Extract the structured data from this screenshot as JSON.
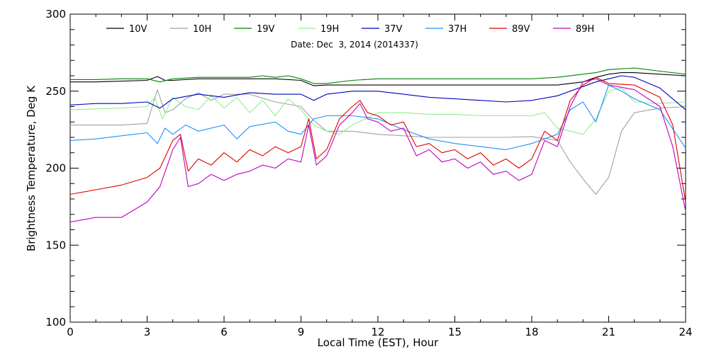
{
  "chart_data": {
    "type": "line",
    "title": "",
    "annotation": "Date: Dec  3, 2014 (2014337)",
    "xlabel": "Local Time (EST), Hour",
    "ylabel": "Brightness Temperature, Deg K",
    "xlim": [
      0,
      24
    ],
    "ylim": [
      100,
      300
    ],
    "xticks": [
      0,
      3,
      6,
      9,
      12,
      15,
      18,
      21,
      24
    ],
    "yticks": [
      100,
      150,
      200,
      250,
      300
    ],
    "grid": false,
    "legend_position": "top",
    "series": [
      {
        "name": "10V",
        "color": "#000000",
        "points": [
          [
            0,
            256
          ],
          [
            1,
            256
          ],
          [
            2,
            256.5
          ],
          [
            3,
            257
          ],
          [
            3.4,
            259.5
          ],
          [
            3.7,
            257
          ],
          [
            4,
            257
          ],
          [
            5,
            258
          ],
          [
            6,
            258
          ],
          [
            7,
            258
          ],
          [
            8,
            258
          ],
          [
            9,
            257
          ],
          [
            9.5,
            253.5
          ],
          [
            10,
            254
          ],
          [
            11,
            254
          ],
          [
            12,
            254
          ],
          [
            13,
            254
          ],
          [
            14,
            254
          ],
          [
            15,
            254
          ],
          [
            16,
            254
          ],
          [
            17,
            254
          ],
          [
            18,
            254
          ],
          [
            19,
            254
          ],
          [
            20,
            256
          ],
          [
            20.5,
            259
          ],
          [
            21,
            261
          ],
          [
            21.5,
            262
          ],
          [
            22,
            262
          ],
          [
            23,
            261
          ],
          [
            24,
            260
          ]
        ]
      },
      {
        "name": "10H",
        "color": "#a0a0a0",
        "points": [
          [
            0,
            228
          ],
          [
            1,
            228
          ],
          [
            2,
            228
          ],
          [
            3,
            229
          ],
          [
            3.2,
            240
          ],
          [
            3.4,
            251
          ],
          [
            3.7,
            236
          ],
          [
            4,
            238
          ],
          [
            4.5,
            245
          ],
          [
            5,
            249
          ],
          [
            5.5,
            244
          ],
          [
            6,
            248
          ],
          [
            7,
            248
          ],
          [
            8,
            243
          ],
          [
            9,
            240
          ],
          [
            9.5,
            231
          ],
          [
            10,
            224
          ],
          [
            11,
            224
          ],
          [
            12,
            222
          ],
          [
            13,
            221
          ],
          [
            14,
            220
          ],
          [
            15,
            220
          ],
          [
            16,
            220
          ],
          [
            17,
            220
          ],
          [
            18,
            220.5
          ],
          [
            19,
            218
          ],
          [
            19.5,
            204
          ],
          [
            20,
            193
          ],
          [
            20.5,
            183
          ],
          [
            21,
            194
          ],
          [
            21.5,
            224
          ],
          [
            22,
            236
          ],
          [
            23,
            239
          ],
          [
            24,
            240
          ]
        ]
      },
      {
        "name": "19V",
        "color": "#008000",
        "points": [
          [
            0,
            257.5
          ],
          [
            1,
            257.5
          ],
          [
            2,
            258
          ],
          [
            3,
            258
          ],
          [
            3.5,
            256
          ],
          [
            4,
            258
          ],
          [
            5,
            259
          ],
          [
            6,
            259
          ],
          [
            7,
            259
          ],
          [
            7.5,
            260
          ],
          [
            8,
            259
          ],
          [
            8.5,
            260
          ],
          [
            9,
            258
          ],
          [
            9.5,
            255
          ],
          [
            10,
            255
          ],
          [
            11,
            257
          ],
          [
            12,
            258
          ],
          [
            13,
            258
          ],
          [
            14,
            258
          ],
          [
            15,
            258
          ],
          [
            16,
            258
          ],
          [
            17,
            258
          ],
          [
            18,
            258
          ],
          [
            19,
            259
          ],
          [
            20,
            261
          ],
          [
            20.5,
            262
          ],
          [
            21,
            264
          ],
          [
            22,
            265
          ],
          [
            23,
            263
          ],
          [
            24,
            261
          ]
        ]
      },
      {
        "name": "19H",
        "color": "#90ee90",
        "points": [
          [
            0,
            238
          ],
          [
            1,
            238.5
          ],
          [
            2,
            239
          ],
          [
            3,
            240
          ],
          [
            3.3,
            246
          ],
          [
            3.6,
            232
          ],
          [
            4,
            246
          ],
          [
            4.5,
            240
          ],
          [
            5,
            238
          ],
          [
            5.5,
            247
          ],
          [
            6,
            239
          ],
          [
            6.5,
            246
          ],
          [
            7,
            236
          ],
          [
            7.5,
            244
          ],
          [
            8,
            234
          ],
          [
            8.5,
            245
          ],
          [
            9,
            238
          ],
          [
            9.5,
            228
          ],
          [
            10,
            224
          ],
          [
            10.5,
            222
          ],
          [
            11,
            228
          ],
          [
            12,
            236
          ],
          [
            13,
            236
          ],
          [
            14,
            235
          ],
          [
            15,
            235
          ],
          [
            16,
            234
          ],
          [
            17,
            234
          ],
          [
            18,
            234
          ],
          [
            18.5,
            236
          ],
          [
            19,
            226
          ],
          [
            19.5,
            224
          ],
          [
            20,
            222
          ],
          [
            20.5,
            232
          ],
          [
            21,
            250
          ],
          [
            21.5,
            252
          ],
          [
            22,
            243
          ],
          [
            23,
            242
          ],
          [
            24,
            243
          ]
        ]
      },
      {
        "name": "37V",
        "color": "#0000c0",
        "points": [
          [
            0,
            241
          ],
          [
            1,
            242
          ],
          [
            2,
            242
          ],
          [
            3,
            243
          ],
          [
            3.5,
            239
          ],
          [
            4,
            245
          ],
          [
            5,
            248
          ],
          [
            6,
            246
          ],
          [
            7,
            249
          ],
          [
            8,
            248
          ],
          [
            9,
            248
          ],
          [
            9.5,
            244
          ],
          [
            10,
            248
          ],
          [
            11,
            250
          ],
          [
            12,
            250
          ],
          [
            13,
            248
          ],
          [
            14,
            246
          ],
          [
            15,
            245
          ],
          [
            16,
            244
          ],
          [
            17,
            243
          ],
          [
            18,
            244
          ],
          [
            19,
            247
          ],
          [
            20,
            253
          ],
          [
            20.5,
            256
          ],
          [
            21,
            258
          ],
          [
            21.5,
            260
          ],
          [
            22,
            259
          ],
          [
            23,
            252
          ],
          [
            24,
            238
          ]
        ]
      },
      {
        "name": "37H",
        "color": "#1e90ff",
        "points": [
          [
            0,
            218
          ],
          [
            1,
            219
          ],
          [
            2,
            221
          ],
          [
            3,
            223
          ],
          [
            3.4,
            216
          ],
          [
            3.7,
            226
          ],
          [
            4,
            222
          ],
          [
            4.5,
            228
          ],
          [
            5,
            224
          ],
          [
            6,
            228
          ],
          [
            6.5,
            219
          ],
          [
            7,
            227
          ],
          [
            8,
            230
          ],
          [
            8.5,
            224
          ],
          [
            9,
            222
          ],
          [
            9.5,
            232
          ],
          [
            10,
            234
          ],
          [
            11,
            234
          ],
          [
            12,
            232
          ],
          [
            13,
            225
          ],
          [
            14,
            219
          ],
          [
            15,
            216
          ],
          [
            16,
            214
          ],
          [
            17,
            212
          ],
          [
            18,
            216
          ],
          [
            19,
            222
          ],
          [
            19.5,
            238
          ],
          [
            20,
            243
          ],
          [
            20.5,
            230
          ],
          [
            21,
            254
          ],
          [
            21.5,
            250
          ],
          [
            22,
            245
          ],
          [
            23,
            238
          ],
          [
            24,
            213
          ]
        ]
      },
      {
        "name": "89V",
        "color": "#e00000",
        "points": [
          [
            0,
            183
          ],
          [
            1,
            186
          ],
          [
            2,
            189
          ],
          [
            3,
            194
          ],
          [
            3.5,
            200
          ],
          [
            4,
            218
          ],
          [
            4.3,
            222
          ],
          [
            4.6,
            198
          ],
          [
            5,
            206
          ],
          [
            5.5,
            202
          ],
          [
            6,
            210
          ],
          [
            6.5,
            204
          ],
          [
            7,
            212
          ],
          [
            7.5,
            208
          ],
          [
            8,
            214
          ],
          [
            8.5,
            210
          ],
          [
            9,
            214
          ],
          [
            9.3,
            232
          ],
          [
            9.6,
            206
          ],
          [
            10,
            212
          ],
          [
            10.5,
            232
          ],
          [
            11,
            240
          ],
          [
            11.3,
            244
          ],
          [
            11.6,
            236
          ],
          [
            12,
            234
          ],
          [
            12.5,
            228
          ],
          [
            13,
            230
          ],
          [
            13.5,
            214
          ],
          [
            14,
            216
          ],
          [
            14.5,
            210
          ],
          [
            15,
            212
          ],
          [
            15.5,
            206
          ],
          [
            16,
            210
          ],
          [
            16.5,
            202
          ],
          [
            17,
            206
          ],
          [
            17.5,
            200
          ],
          [
            18,
            206
          ],
          [
            18.5,
            224
          ],
          [
            19,
            218
          ],
          [
            19.5,
            244
          ],
          [
            20,
            254
          ],
          [
            20.5,
            259
          ],
          [
            21,
            255
          ],
          [
            22,
            254
          ],
          [
            23,
            246
          ],
          [
            23.5,
            228
          ],
          [
            24,
            178
          ]
        ]
      },
      {
        "name": "89H",
        "color": "#c000c0",
        "points": [
          [
            0,
            165
          ],
          [
            1,
            168
          ],
          [
            2,
            168
          ],
          [
            3,
            178
          ],
          [
            3.5,
            188
          ],
          [
            4,
            212
          ],
          [
            4.3,
            220
          ],
          [
            4.6,
            188
          ],
          [
            5,
            190
          ],
          [
            5.5,
            196
          ],
          [
            6,
            192
          ],
          [
            6.5,
            196
          ],
          [
            7,
            198
          ],
          [
            7.5,
            202
          ],
          [
            8,
            200
          ],
          [
            8.5,
            206
          ],
          [
            9,
            204
          ],
          [
            9.3,
            228
          ],
          [
            9.6,
            202
          ],
          [
            10,
            208
          ],
          [
            10.5,
            228
          ],
          [
            11,
            236
          ],
          [
            11.3,
            242
          ],
          [
            11.6,
            232
          ],
          [
            12,
            230
          ],
          [
            12.5,
            224
          ],
          [
            13,
            226
          ],
          [
            13.5,
            208
          ],
          [
            14,
            212
          ],
          [
            14.5,
            204
          ],
          [
            15,
            206
          ],
          [
            15.5,
            200
          ],
          [
            16,
            204
          ],
          [
            16.5,
            196
          ],
          [
            17,
            198
          ],
          [
            17.5,
            192
          ],
          [
            18,
            196
          ],
          [
            18.5,
            218
          ],
          [
            19,
            214
          ],
          [
            19.5,
            240
          ],
          [
            20,
            256
          ],
          [
            20.5,
            258
          ],
          [
            21,
            254
          ],
          [
            22,
            251
          ],
          [
            23,
            240
          ],
          [
            23.5,
            214
          ],
          [
            24,
            172
          ]
        ]
      }
    ]
  }
}
